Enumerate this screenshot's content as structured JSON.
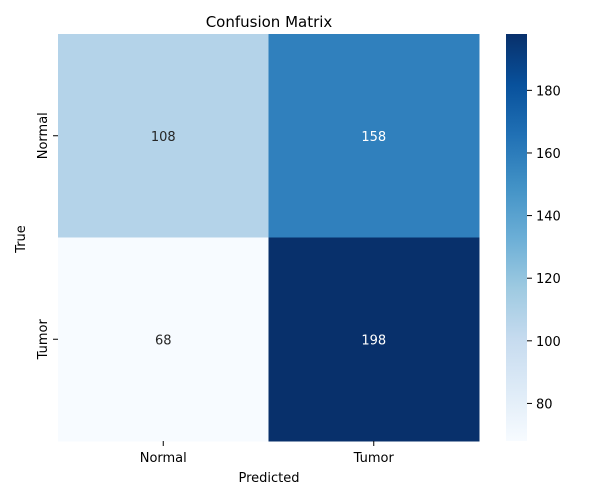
{
  "chart_data": {
    "type": "heatmap",
    "title": "Confusion Matrix",
    "xlabel": "Predicted",
    "ylabel": "True",
    "x_categories": [
      "Normal",
      "Tumor"
    ],
    "y_categories": [
      "Normal",
      "Tumor"
    ],
    "values": [
      [
        108,
        158
      ],
      [
        68,
        198
      ]
    ],
    "colormap": "Blues",
    "value_range": [
      68,
      198
    ],
    "colorbar_ticks": [
      80,
      100,
      120,
      140,
      160,
      180
    ],
    "colorbar_tick_labels": [
      "80",
      "100",
      "120",
      "140",
      "160",
      "180"
    ],
    "colorscale_stops": [
      "#f7fbff",
      "#deebf7",
      "#c6dbef",
      "#9ecae1",
      "#6baed6",
      "#4292c6",
      "#2171b5",
      "#08519c",
      "#08306b"
    ]
  }
}
